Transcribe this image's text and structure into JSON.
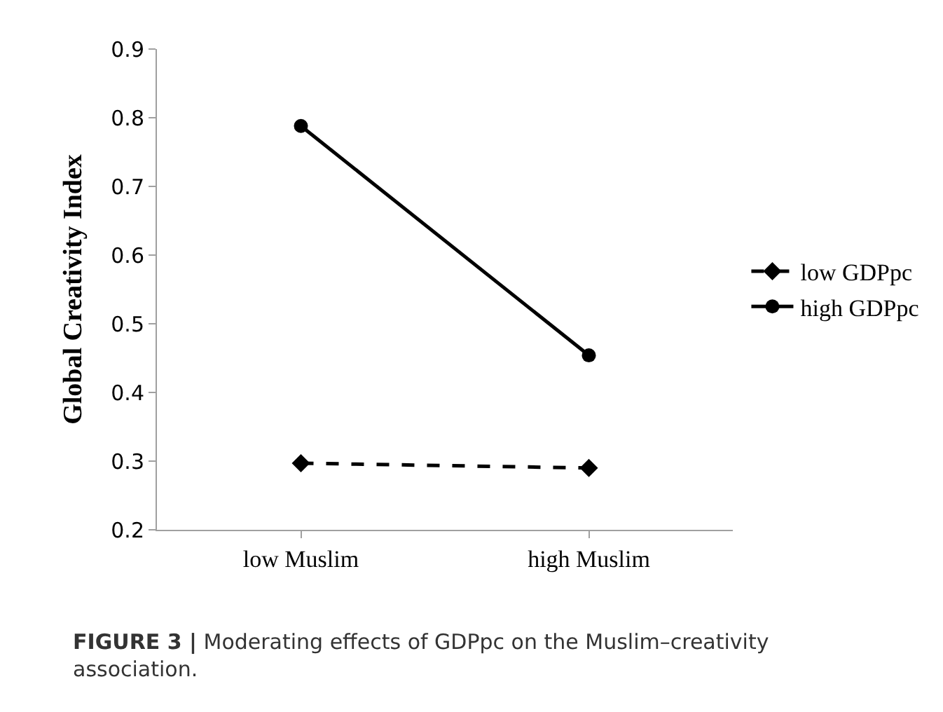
{
  "chart_data": {
    "type": "line",
    "ylabel": "Global Creativity Index",
    "categories": [
      "low Muslim",
      "high Muslim"
    ],
    "series": [
      {
        "name": "low GDPpc",
        "color": "#000000",
        "values": [
          0.297,
          0.29
        ],
        "line_style": "dashed",
        "marker": "diamond"
      },
      {
        "name": "high GDPpc",
        "color": "#000000",
        "values": [
          0.788,
          0.454
        ],
        "line_style": "solid",
        "marker": "circle"
      }
    ],
    "ylim": [
      0.2,
      0.9
    ],
    "yticks": [
      0.2,
      0.3,
      0.4,
      0.5,
      0.6,
      0.7,
      0.8,
      0.9
    ],
    "legend": "right",
    "annotations": [
      "FIGURE 3 | Moderating effects of GDPpc on the Muslim–creativity association."
    ]
  }
}
